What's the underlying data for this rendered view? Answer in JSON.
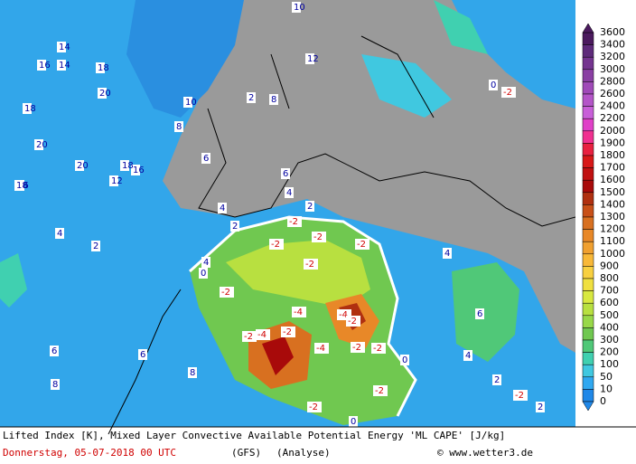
{
  "legend": {
    "levels": [
      "3600",
      "3400",
      "3200",
      "3000",
      "2800",
      "2600",
      "2400",
      "2200",
      "2000",
      "1900",
      "1800",
      "1700",
      "1600",
      "1500",
      "1400",
      "1300",
      "1200",
      "1100",
      "1000",
      "900",
      "800",
      "700",
      "600",
      "500",
      "400",
      "300",
      "200",
      "100",
      "50",
      "10",
      "0"
    ],
    "colors": [
      "#4b1a5e",
      "#5e2a7a",
      "#74348f",
      "#8a3fa3",
      "#a04ab8",
      "#b455c8",
      "#c85fd8",
      "#e040c8",
      "#f03090",
      "#e82040",
      "#d81818",
      "#c01010",
      "#a80a0a",
      "#b03010",
      "#c85018",
      "#d87020",
      "#e88828",
      "#f0a030",
      "#f8b838",
      "#f8d040",
      "#f0e040",
      "#d8e840",
      "#b8e040",
      "#98d848",
      "#70c850",
      "#50c878",
      "#40d0b0",
      "#40c8e0",
      "#30a8f0",
      "#2088e8"
    ]
  },
  "map": {
    "contour_labels": [
      "14",
      "16",
      "14",
      "18",
      "20",
      "18",
      "20",
      "16",
      "20",
      "18",
      "16",
      "12",
      "18",
      "10",
      "8",
      "6",
      "4",
      "2",
      "12",
      "10",
      "8",
      "6",
      "4",
      "2",
      "-2",
      "4",
      "2",
      "-2",
      "-2",
      "-2",
      "0",
      "-2",
      "-2",
      "-4",
      "-4",
      "-2",
      "-2",
      "-4",
      "-2",
      "-4",
      "-2",
      "-2",
      "0",
      "-2",
      "-2",
      "0",
      "2",
      "4",
      "6",
      "8",
      "6",
      "8",
      "4",
      "6",
      "4",
      "2",
      "0",
      "-2",
      "-2",
      "2"
    ]
  },
  "footer": {
    "title": "Lifted Index [K], Mixed Layer Convective Available Potential Energy 'ML CAPE' [J/kg]",
    "date": "Donnerstag, 05-07-2018  00 UTC",
    "model": "(GFS)",
    "run": "(Analyse)",
    "credit": "© www.wetter3.de"
  }
}
